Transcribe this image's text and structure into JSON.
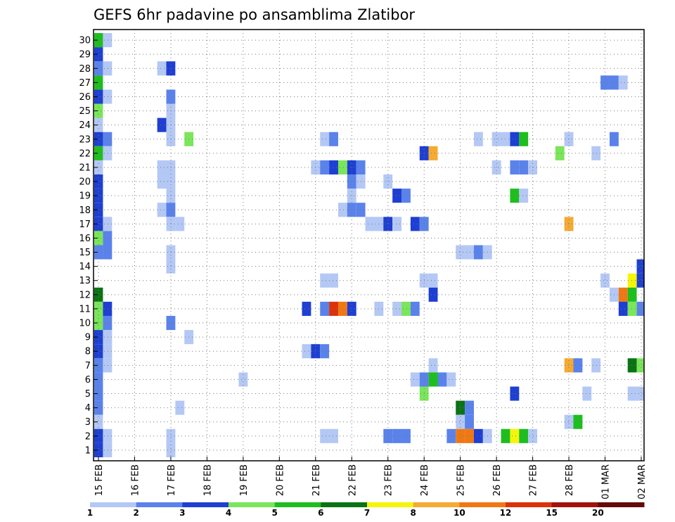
{
  "chart_data": {
    "type": "heatmap",
    "title": "GEFS 6hr padavine po ansamblima Zlatibor",
    "y_categories": [
      1,
      2,
      3,
      4,
      5,
      6,
      7,
      8,
      9,
      10,
      11,
      12,
      13,
      14,
      15,
      16,
      17,
      18,
      19,
      20,
      21,
      22,
      23,
      24,
      25,
      26,
      27,
      28,
      29,
      30
    ],
    "x_ticks": [
      "15 FEB",
      "16 FEB",
      "17 FEB",
      "18 FEB",
      "19 FEB",
      "20 FEB",
      "21 FEB",
      "22 FEB",
      "23 FEB",
      "24 FEB",
      "25 FEB",
      "26 FEB",
      "27 FEB",
      "28 FEB",
      "01 MAR",
      "02 MAR"
    ],
    "x_step_hours": 6,
    "legend": {
      "labels": [
        "1",
        "2",
        "3",
        "4",
        "5",
        "6",
        "7",
        "8",
        "10",
        "12",
        "15",
        "20"
      ],
      "colors": [
        "#b4c8f5",
        "#5a82eb",
        "#1e3fd2",
        "#7ae65a",
        "#1ebe1e",
        "#0a7314",
        "#f5f50a",
        "#f5aa32",
        "#f07814",
        "#dc320a",
        "#a0140a",
        "#640a0a"
      ]
    },
    "cells": [
      [
        30,
        0,
        "#1ebe1e"
      ],
      [
        30,
        1,
        "#b4c8f5"
      ],
      [
        29,
        0,
        "#1e3fd2"
      ],
      [
        28,
        0,
        "#5a82eb"
      ],
      [
        28,
        1,
        "#b4c8f5"
      ],
      [
        28,
        7,
        "#b4c8f5"
      ],
      [
        28,
        8,
        "#1e3fd2"
      ],
      [
        27,
        0,
        "#1ebe1e"
      ],
      [
        27,
        56,
        "#5a82eb"
      ],
      [
        27,
        57,
        "#5a82eb"
      ],
      [
        27,
        58,
        "#b4c8f5"
      ],
      [
        26,
        0,
        "#1e3fd2"
      ],
      [
        26,
        1,
        "#b4c8f5"
      ],
      [
        26,
        8,
        "#5a82eb"
      ],
      [
        25,
        0,
        "#7ae65a"
      ],
      [
        25,
        8,
        "#b4c8f5"
      ],
      [
        24,
        0,
        "#b4c8f5"
      ],
      [
        24,
        7,
        "#1e3fd2"
      ],
      [
        24,
        8,
        "#b4c8f5"
      ],
      [
        23,
        0,
        "#1e3fd2"
      ],
      [
        23,
        1,
        "#5a82eb"
      ],
      [
        23,
        8,
        "#b4c8f5"
      ],
      [
        23,
        10,
        "#7ae65a"
      ],
      [
        23,
        25,
        "#b4c8f5"
      ],
      [
        23,
        26,
        "#5a82eb"
      ],
      [
        23,
        42,
        "#b4c8f5"
      ],
      [
        23,
        44,
        "#b4c8f5"
      ],
      [
        23,
        45,
        "#b4c8f5"
      ],
      [
        23,
        46,
        "#1e3fd2"
      ],
      [
        23,
        47,
        "#1ebe1e"
      ],
      [
        23,
        52,
        "#b4c8f5"
      ],
      [
        23,
        57,
        "#5a82eb"
      ],
      [
        22,
        0,
        "#1ebe1e"
      ],
      [
        22,
        1,
        "#b4c8f5"
      ],
      [
        22,
        36,
        "#1e3fd2"
      ],
      [
        22,
        37,
        "#f5aa32"
      ],
      [
        22,
        51,
        "#7ae65a"
      ],
      [
        22,
        55,
        "#b4c8f5"
      ],
      [
        21,
        0,
        "#b4c8f5"
      ],
      [
        21,
        7,
        "#b4c8f5"
      ],
      [
        21,
        8,
        "#b4c8f5"
      ],
      [
        21,
        24,
        "#b4c8f5"
      ],
      [
        21,
        25,
        "#5a82eb"
      ],
      [
        21,
        26,
        "#1e3fd2"
      ],
      [
        21,
        27,
        "#7ae65a"
      ],
      [
        21,
        28,
        "#1e3fd2"
      ],
      [
        21,
        29,
        "#5a82eb"
      ],
      [
        21,
        44,
        "#b4c8f5"
      ],
      [
        21,
        46,
        "#5a82eb"
      ],
      [
        21,
        47,
        "#5a82eb"
      ],
      [
        21,
        48,
        "#b4c8f5"
      ],
      [
        20,
        0,
        "#1e3fd2"
      ],
      [
        20,
        7,
        "#b4c8f5"
      ],
      [
        20,
        8,
        "#b4c8f5"
      ],
      [
        20,
        28,
        "#5a82eb"
      ],
      [
        20,
        29,
        "#b4c8f5"
      ],
      [
        20,
        32,
        "#b4c8f5"
      ],
      [
        19,
        0,
        "#1e3fd2"
      ],
      [
        19,
        8,
        "#b4c8f5"
      ],
      [
        19,
        28,
        "#b4c8f5"
      ],
      [
        19,
        33,
        "#1e3fd2"
      ],
      [
        19,
        34,
        "#5a82eb"
      ],
      [
        19,
        46,
        "#1ebe1e"
      ],
      [
        19,
        47,
        "#b4c8f5"
      ],
      [
        18,
        0,
        "#1e3fd2"
      ],
      [
        18,
        7,
        "#b4c8f5"
      ],
      [
        18,
        8,
        "#5a82eb"
      ],
      [
        18,
        27,
        "#b4c8f5"
      ],
      [
        18,
        28,
        "#5a82eb"
      ],
      [
        18,
        29,
        "#5a82eb"
      ],
      [
        17,
        0,
        "#1e3fd2"
      ],
      [
        17,
        1,
        "#b4c8f5"
      ],
      [
        17,
        8,
        "#b4c8f5"
      ],
      [
        17,
        9,
        "#b4c8f5"
      ],
      [
        17,
        30,
        "#b4c8f5"
      ],
      [
        17,
        31,
        "#b4c8f5"
      ],
      [
        17,
        32,
        "#1e3fd2"
      ],
      [
        17,
        33,
        "#b4c8f5"
      ],
      [
        17,
        35,
        "#1e3fd2"
      ],
      [
        17,
        36,
        "#5a82eb"
      ],
      [
        17,
        52,
        "#f5aa32"
      ],
      [
        16,
        0,
        "#7ae65a"
      ],
      [
        16,
        1,
        "#5a82eb"
      ],
      [
        15,
        0,
        "#5a82eb"
      ],
      [
        15,
        1,
        "#5a82eb"
      ],
      [
        15,
        8,
        "#b4c8f5"
      ],
      [
        15,
        40,
        "#b4c8f5"
      ],
      [
        15,
        41,
        "#b4c8f5"
      ],
      [
        15,
        42,
        "#5a82eb"
      ],
      [
        15,
        43,
        "#b4c8f5"
      ],
      [
        14,
        8,
        "#b4c8f5"
      ],
      [
        14,
        60,
        "#1e3fd2"
      ],
      [
        13,
        25,
        "#b4c8f5"
      ],
      [
        13,
        26,
        "#b4c8f5"
      ],
      [
        13,
        36,
        "#b4c8f5"
      ],
      [
        13,
        37,
        "#b4c8f5"
      ],
      [
        13,
        56,
        "#b4c8f5"
      ],
      [
        13,
        59,
        "#f5f50a"
      ],
      [
        13,
        60,
        "#1e3fd2"
      ],
      [
        12,
        0,
        "#0a7314"
      ],
      [
        12,
        37,
        "#1e3fd2"
      ],
      [
        12,
        57,
        "#b4c8f5"
      ],
      [
        12,
        58,
        "#f07814"
      ],
      [
        12,
        59,
        "#1ebe1e"
      ],
      [
        11,
        0,
        "#7ae65a"
      ],
      [
        11,
        1,
        "#1e3fd2"
      ],
      [
        11,
        23,
        "#1e3fd2"
      ],
      [
        11,
        25,
        "#5a82eb"
      ],
      [
        11,
        26,
        "#dc320a"
      ],
      [
        11,
        27,
        "#f07814"
      ],
      [
        11,
        28,
        "#1e3fd2"
      ],
      [
        11,
        31,
        "#b4c8f5"
      ],
      [
        11,
        33,
        "#b4c8f5"
      ],
      [
        11,
        34,
        "#7ae65a"
      ],
      [
        11,
        35,
        "#5a82eb"
      ],
      [
        11,
        58,
        "#1e3fd2"
      ],
      [
        11,
        59,
        "#7ae65a"
      ],
      [
        11,
        60,
        "#5a82eb"
      ],
      [
        10,
        0,
        "#7ae65a"
      ],
      [
        10,
        1,
        "#5a82eb"
      ],
      [
        10,
        8,
        "#5a82eb"
      ],
      [
        9,
        0,
        "#1e3fd2"
      ],
      [
        9,
        1,
        "#b4c8f5"
      ],
      [
        9,
        10,
        "#b4c8f5"
      ],
      [
        8,
        0,
        "#1e3fd2"
      ],
      [
        8,
        1,
        "#b4c8f5"
      ],
      [
        8,
        23,
        "#b4c8f5"
      ],
      [
        8,
        24,
        "#1e3fd2"
      ],
      [
        8,
        25,
        "#5a82eb"
      ],
      [
        7,
        0,
        "#5a82eb"
      ],
      [
        7,
        1,
        "#b4c8f5"
      ],
      [
        7,
        37,
        "#b4c8f5"
      ],
      [
        7,
        52,
        "#f5aa32"
      ],
      [
        7,
        53,
        "#5a82eb"
      ],
      [
        7,
        55,
        "#b4c8f5"
      ],
      [
        7,
        59,
        "#0a7314"
      ],
      [
        7,
        60,
        "#7ae65a"
      ],
      [
        6,
        0,
        "#5a82eb"
      ],
      [
        6,
        16,
        "#b4c8f5"
      ],
      [
        6,
        35,
        "#b4c8f5"
      ],
      [
        6,
        36,
        "#5a82eb"
      ],
      [
        6,
        37,
        "#1ebe1e"
      ],
      [
        6,
        38,
        "#5a82eb"
      ],
      [
        6,
        39,
        "#b4c8f5"
      ],
      [
        5,
        0,
        "#5a82eb"
      ],
      [
        5,
        36,
        "#7ae65a"
      ],
      [
        5,
        46,
        "#1e3fd2"
      ],
      [
        5,
        54,
        "#b4c8f5"
      ],
      [
        5,
        59,
        "#b4c8f5"
      ],
      [
        5,
        60,
        "#b4c8f5"
      ],
      [
        4,
        0,
        "#5a82eb"
      ],
      [
        4,
        9,
        "#b4c8f5"
      ],
      [
        4,
        40,
        "#0a7314"
      ],
      [
        4,
        41,
        "#5a82eb"
      ],
      [
        3,
        0,
        "#b4c8f5"
      ],
      [
        3,
        40,
        "#b4c8f5"
      ],
      [
        3,
        41,
        "#5a82eb"
      ],
      [
        3,
        52,
        "#b4c8f5"
      ],
      [
        3,
        53,
        "#1ebe1e"
      ],
      [
        2,
        0,
        "#1e3fd2"
      ],
      [
        2,
        1,
        "#b4c8f5"
      ],
      [
        2,
        8,
        "#b4c8f5"
      ],
      [
        2,
        25,
        "#b4c8f5"
      ],
      [
        2,
        26,
        "#b4c8f5"
      ],
      [
        2,
        32,
        "#5a82eb"
      ],
      [
        2,
        33,
        "#5a82eb"
      ],
      [
        2,
        34,
        "#5a82eb"
      ],
      [
        2,
        39,
        "#5a82eb"
      ],
      [
        2,
        40,
        "#f07814"
      ],
      [
        2,
        41,
        "#f07814"
      ],
      [
        2,
        42,
        "#1e3fd2"
      ],
      [
        2,
        43,
        "#b4c8f5"
      ],
      [
        2,
        45,
        "#1ebe1e"
      ],
      [
        2,
        46,
        "#f5f50a"
      ],
      [
        2,
        47,
        "#1ebe1e"
      ],
      [
        2,
        48,
        "#b4c8f5"
      ],
      [
        1,
        0,
        "#1e3fd2"
      ],
      [
        1,
        1,
        "#b4c8f5"
      ],
      [
        1,
        8,
        "#b4c8f5"
      ]
    ]
  }
}
